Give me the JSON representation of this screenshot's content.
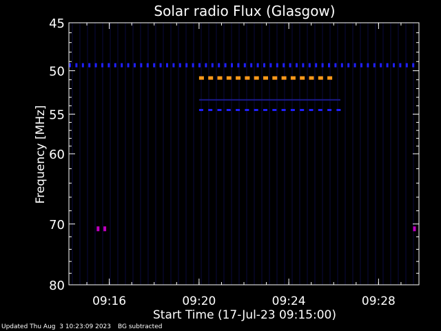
{
  "chart_data": {
    "type": "heatmap",
    "title": "Solar radio Flux (Glasgow)",
    "xlabel": "Start Time (17-Jul-23 09:15:00)",
    "ylabel": "Frequency [MHz]",
    "x_ticks": [
      {
        "minutes": 1,
        "label": "09:16"
      },
      {
        "minutes": 5,
        "label": "09:20"
      },
      {
        "minutes": 9,
        "label": "09:24"
      },
      {
        "minutes": 13,
        "label": "09:28"
      }
    ],
    "y_ticks": [
      {
        "mhz": 45,
        "label": "45"
      },
      {
        "mhz": 50,
        "label": "50"
      },
      {
        "mhz": 55,
        "label": "55"
      },
      {
        "mhz": 60,
        "label": "60"
      },
      {
        "mhz": 70,
        "label": "70"
      },
      {
        "mhz": 80,
        "label": "80"
      }
    ],
    "xlim_minutes": [
      -0.8,
      14.8
    ],
    "ylim_mhz": [
      45,
      80
    ],
    "y_scale": "log",
    "colors": {
      "background": "#000000",
      "frame": "#ffffff",
      "emission_strong": "#ff9a1a",
      "emission_medium": "#2020ff",
      "emission_weak": "#1a1a8c",
      "emission_spot": "#c000c0",
      "stripe": "#05051f"
    },
    "emission_bands": [
      {
        "mhz": 49.4,
        "start_min": -0.8,
        "end_min": 14.8,
        "level": "medium",
        "dashed": true
      },
      {
        "mhz": 50.8,
        "start_min": 5.0,
        "end_min": 11.3,
        "level": "strong",
        "dashed": true
      },
      {
        "mhz": 53.3,
        "start_min": 5.0,
        "end_min": 11.3,
        "level": "weak",
        "dashed": false
      },
      {
        "mhz": 54.5,
        "start_min": 5.0,
        "end_min": 11.3,
        "level": "medium",
        "dashed": true
      }
    ],
    "emission_spots": [
      {
        "mhz": 70.8,
        "minute": 0.5
      },
      {
        "mhz": 70.8,
        "minute": 0.8
      },
      {
        "mhz": 70.8,
        "minute": 14.6
      }
    ]
  },
  "footer": {
    "updated": "Updated Thu Aug  3 10:23:09 2023",
    "note": "BG subtracted"
  }
}
